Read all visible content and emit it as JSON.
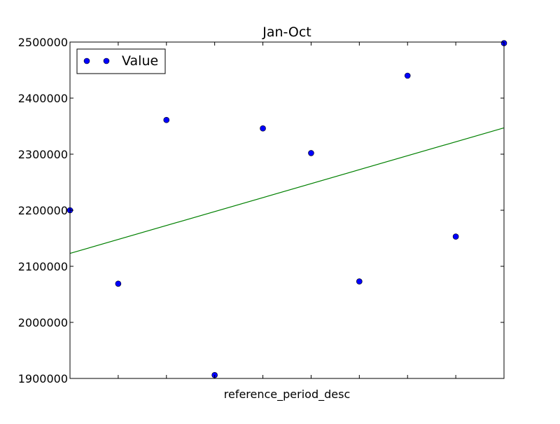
{
  "chart_data": {
    "type": "scatter",
    "title": "Jan-Oct",
    "xlabel": "reference_period_desc",
    "ylabel": "",
    "xlim": [
      0,
      9
    ],
    "ylim": [
      1900000,
      2500000
    ],
    "yticks": [
      1900000,
      2000000,
      2100000,
      2200000,
      2300000,
      2400000,
      2500000
    ],
    "ytick_labels": [
      "1900000",
      "2000000",
      "2100000",
      "2200000",
      "2300000",
      "2400000",
      "2500000"
    ],
    "xticks": [
      1,
      2,
      3,
      4,
      5,
      6,
      7,
      8
    ],
    "grid": false,
    "legend_position": "top-left",
    "series": [
      {
        "name": "Value",
        "kind": "markers",
        "color": "#0000ff",
        "x": [
          0,
          1,
          2,
          3,
          4,
          5,
          6,
          7,
          8,
          9
        ],
        "values": [
          2200000,
          2069000,
          2361000,
          1906000,
          2346000,
          2302000,
          2073000,
          2440000,
          2153000,
          2498000
        ]
      },
      {
        "kind": "line",
        "color": "#008000",
        "x": [
          0,
          9
        ],
        "values": [
          2123000,
          2347000
        ]
      }
    ]
  }
}
